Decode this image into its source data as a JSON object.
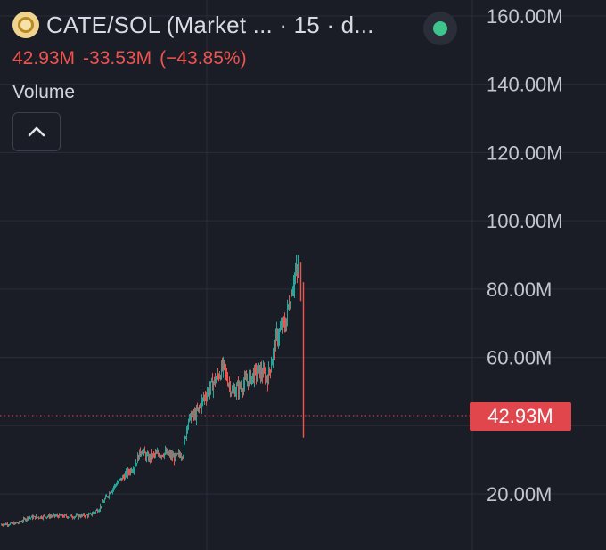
{
  "header": {
    "symbol": "CATE/SOL (Market ... · 15 · d...",
    "icon": "cate-coin-icon",
    "status_color": "#3ec58e"
  },
  "price": {
    "last": "42.93M",
    "change": "-33.53M",
    "change_pct": "(−43.85%)"
  },
  "volume": {
    "label": "Volume",
    "toggle_icon": "chevron-up-icon"
  },
  "colors": {
    "background": "#1b1d26",
    "up": "#26a69a",
    "down": "#ef5350",
    "grid": "#2a2d38",
    "price_line": "#e0464c"
  },
  "chart_data": {
    "type": "candlestick",
    "y_ticks": [
      "160.00M",
      "140.00M",
      "120.00M",
      "100.00M",
      "80.00M",
      "60.00M",
      "20.00M"
    ],
    "y_tick_values": [
      160,
      140,
      120,
      100,
      80,
      60,
      20
    ],
    "y_unit": "M",
    "ylim": [
      8,
      165
    ],
    "last_price": 42.93,
    "last_price_label": "42.93M",
    "grid": true,
    "trend": [
      [
        0,
        11.0
      ],
      [
        20,
        11.5
      ],
      [
        30,
        13.0
      ],
      [
        45,
        13.3
      ],
      [
        60,
        13.6
      ],
      [
        80,
        13.4
      ],
      [
        100,
        13.8
      ],
      [
        110,
        15.5
      ],
      [
        120,
        19.5
      ],
      [
        130,
        23.0
      ],
      [
        140,
        25.5
      ],
      [
        150,
        28.0
      ],
      [
        158,
        33.0
      ],
      [
        165,
        30.5
      ],
      [
        175,
        31.5
      ],
      [
        185,
        32.0
      ],
      [
        195,
        30.5
      ],
      [
        205,
        32.0
      ],
      [
        210,
        41.5
      ],
      [
        220,
        43.5
      ],
      [
        230,
        49.0
      ],
      [
        240,
        53.0
      ],
      [
        250,
        57.0
      ],
      [
        260,
        50.0
      ],
      [
        270,
        51.5
      ],
      [
        280,
        54.0
      ],
      [
        290,
        56.0
      ],
      [
        300,
        54.0
      ],
      [
        310,
        66.0
      ],
      [
        320,
        70.0
      ],
      [
        325,
        78.0
      ],
      [
        330,
        84.0
      ],
      [
        335,
        85.0
      ]
    ],
    "final_high": 90.0,
    "final_close": 76.5,
    "crash_low": 36.5
  }
}
